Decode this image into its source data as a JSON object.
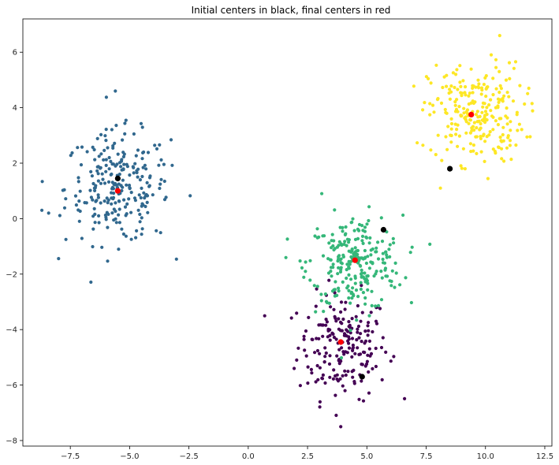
{
  "chart_data": {
    "type": "scatter",
    "title": "Initial centers in black, final centers in red",
    "xlabel": "",
    "ylabel": "",
    "xlim": [
      -9.5,
      12.8
    ],
    "ylim": [
      -8.2,
      7.2
    ],
    "grid": false,
    "x_ticks": [
      -7.5,
      -5.0,
      -2.5,
      0.0,
      2.5,
      5.0,
      7.5,
      10.0,
      12.5
    ],
    "x_tick_labels": [
      "−7.5",
      "−5.0",
      "−2.5",
      "0.0",
      "2.5",
      "5.0",
      "7.5",
      "10.0",
      "12.5"
    ],
    "y_ticks": [
      -8,
      -6,
      -4,
      -2,
      0,
      2,
      4,
      6
    ],
    "y_tick_labels": [
      "−8",
      "−6",
      "−4",
      "−2",
      "0",
      "2",
      "4",
      "6"
    ],
    "clusters": [
      {
        "color": "#440154",
        "center": [
          4.0,
          -4.6
        ],
        "spread": [
          0.95,
          0.95
        ],
        "count": 200
      },
      {
        "color": "#31688e",
        "center": [
          -5.5,
          1.1
        ],
        "spread": [
          1.1,
          1.0
        ],
        "count": 250
      },
      {
        "color": "#35b779",
        "center": [
          4.5,
          -1.6
        ],
        "spread": [
          1.0,
          0.85
        ],
        "count": 250
      },
      {
        "color": "#fde725",
        "center": [
          9.6,
          3.8
        ],
        "spread": [
          1.0,
          0.9
        ],
        "count": 250
      }
    ],
    "outlier_points": [
      {
        "x": -5.6,
        "y": 4.6,
        "cluster": 1
      },
      {
        "x": -8.7,
        "y": 0.3,
        "cluster": 1
      },
      {
        "x": 3.9,
        "y": -7.5,
        "cluster": 0
      },
      {
        "x": 10.6,
        "y": 6.6,
        "cluster": 3
      },
      {
        "x": 8.1,
        "y": 1.1,
        "cluster": 3
      },
      {
        "x": 3.1,
        "y": 0.9,
        "cluster": 2
      }
    ],
    "initial_centers": {
      "color": "#000000",
      "points": [
        {
          "x": -5.5,
          "y": 1.45
        },
        {
          "x": 5.7,
          "y": -0.4
        },
        {
          "x": 8.5,
          "y": 1.8
        },
        {
          "x": 4.8,
          "y": -5.7
        }
      ]
    },
    "final_centers": {
      "color": "#ff0000",
      "points": [
        {
          "x": -5.5,
          "y": 1.0
        },
        {
          "x": 4.5,
          "y": -1.5
        },
        {
          "x": 9.4,
          "y": 3.75
        },
        {
          "x": 3.9,
          "y": -4.45
        }
      ]
    }
  }
}
